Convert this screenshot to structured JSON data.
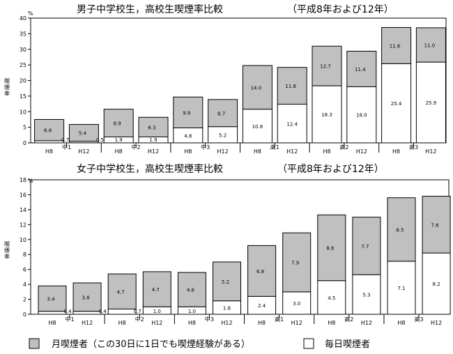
{
  "chart_data": [
    {
      "type": "bar",
      "stacked": true,
      "title": "男子中学校生，高校生喫煙率比較",
      "subtitle": "（平成8年および12年）",
      "ylabel": "喫煙率",
      "yunit": "%",
      "ylim": [
        0,
        40
      ],
      "yticks": [
        0,
        5,
        10,
        15,
        20,
        25,
        30,
        35,
        40
      ],
      "grid": false,
      "categories": [
        "H8",
        "H12",
        "H8",
        "H12",
        "H8",
        "H12",
        "H8",
        "H12",
        "H8",
        "H12",
        "H8",
        "H12"
      ],
      "groups": [
        "中1",
        "中2",
        "中3",
        "高1",
        "高2",
        "高3"
      ],
      "series": [
        {
          "name": "毎日喫煙者",
          "values": [
            0.7,
            0.5,
            1.9,
            1.9,
            4.8,
            5.2,
            10.8,
            12.4,
            18.3,
            18.0,
            25.4,
            25.9
          ]
        },
        {
          "name": "月喫煙者（この30日に1日でも喫煙経験がある）",
          "values": [
            6.8,
            5.4,
            8.9,
            6.3,
            9.9,
            8.7,
            14.0,
            11.8,
            12.7,
            11.4,
            11.6,
            11.0
          ]
        }
      ]
    },
    {
      "type": "bar",
      "stacked": true,
      "title": "女子中学校生，高校生喫煙率比較",
      "subtitle": "（平成8年および12年）",
      "ylabel": "喫煙率",
      "yunit": "%",
      "ylim": [
        0,
        18
      ],
      "yticks": [
        0,
        2,
        4,
        6,
        8,
        10,
        12,
        14,
        16,
        18
      ],
      "grid": false,
      "categories": [
        "H8",
        "H12",
        "H8",
        "H12",
        "H8",
        "H12",
        "H8",
        "H12",
        "H8",
        "H12",
        "H8",
        "H12"
      ],
      "groups": [
        "中1",
        "中2",
        "中3",
        "高1",
        "高2",
        "高3"
      ],
      "series": [
        {
          "name": "毎日喫煙者",
          "values": [
            0.4,
            0.4,
            0.7,
            1.0,
            1.0,
            1.8,
            2.4,
            3.0,
            4.5,
            5.3,
            7.1,
            8.2
          ]
        },
        {
          "name": "月喫煙者（この30日に1日でも喫煙経験がある）",
          "values": [
            3.4,
            3.8,
            4.7,
            4.7,
            4.6,
            5.2,
            6.8,
            7.9,
            8.8,
            7.7,
            8.5,
            7.6
          ]
        }
      ]
    }
  ],
  "legend": {
    "monthly": "月喫煙者（この30日に1日でも喫煙経験がある）",
    "daily": "毎日喫煙者"
  },
  "colors": {
    "monthly": "#c0c0c0",
    "daily": "#ffffff",
    "stroke": "#000000"
  }
}
